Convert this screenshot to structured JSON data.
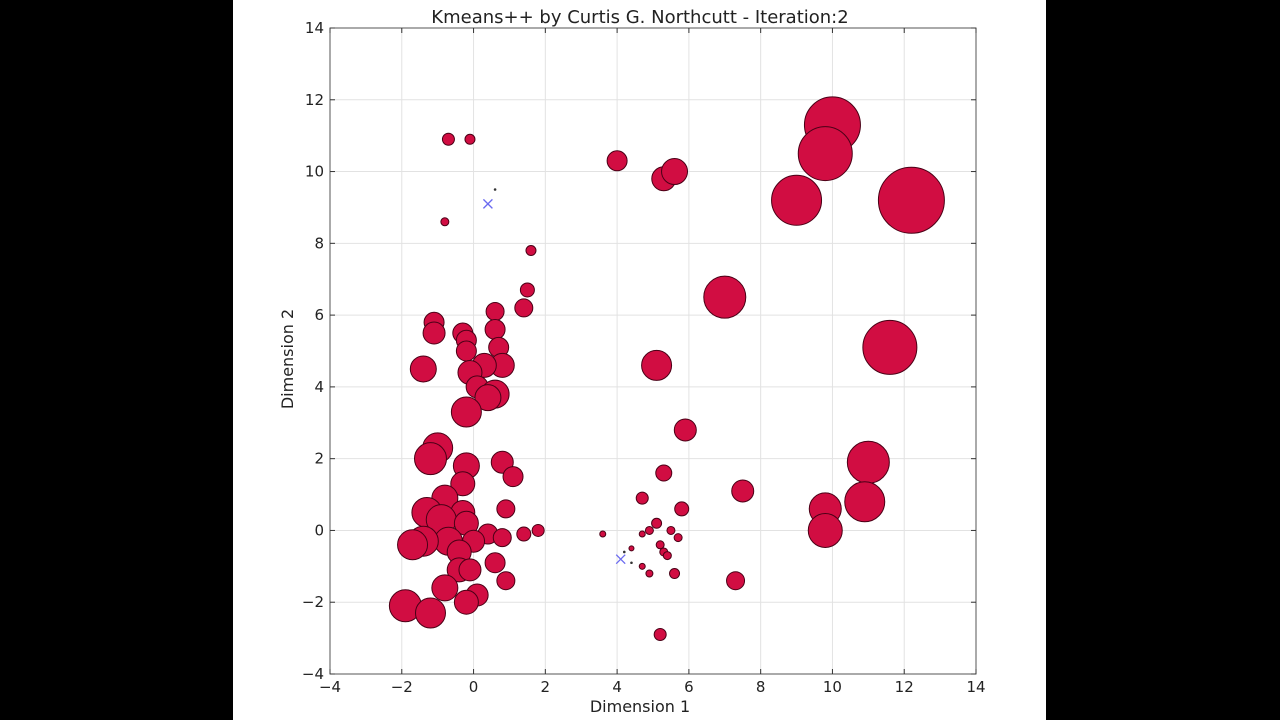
{
  "chart_data": {
    "type": "scatter",
    "title": "Kmeans++ by Curtis G. Northcutt - Iteration:2",
    "xlabel": "Dimension 1",
    "ylabel": "Dimension 2",
    "xlim": [
      -4,
      14
    ],
    "ylim": [
      -4,
      14
    ],
    "xticks": [
      -4,
      -2,
      0,
      2,
      4,
      6,
      8,
      10,
      12,
      14
    ],
    "yticks": [
      -4,
      -2,
      0,
      2,
      4,
      6,
      8,
      10,
      12,
      14
    ],
    "grid": true,
    "colors": {
      "points": "#d10d42",
      "point_edge": "#4a0016",
      "centroid": "#6a6af0",
      "grid": "#e2e2e2"
    },
    "series": [
      {
        "marker": "circle",
        "points": [
          {
            "x": -0.7,
            "y": 10.9,
            "s": 0.6
          },
          {
            "x": -0.1,
            "y": 10.9,
            "s": 0.5
          },
          {
            "x": -0.8,
            "y": 8.6,
            "s": 0.4
          },
          {
            "x": 1.6,
            "y": 7.8,
            "s": 0.5
          },
          {
            "x": 1.5,
            "y": 6.7,
            "s": 0.7
          },
          {
            "x": 1.4,
            "y": 6.2,
            "s": 0.9
          },
          {
            "x": 0.6,
            "y": 6.1,
            "s": 0.9
          },
          {
            "x": -1.1,
            "y": 5.8,
            "s": 1.0
          },
          {
            "x": -1.1,
            "y": 5.5,
            "s": 1.1
          },
          {
            "x": -0.3,
            "y": 5.5,
            "s": 1.0
          },
          {
            "x": -0.2,
            "y": 5.3,
            "s": 1.0
          },
          {
            "x": 0.6,
            "y": 5.6,
            "s": 1.0
          },
          {
            "x": 0.7,
            "y": 5.1,
            "s": 1.0
          },
          {
            "x": -0.2,
            "y": 5.0,
            "s": 1.0
          },
          {
            "x": 0.8,
            "y": 4.6,
            "s": 1.2
          },
          {
            "x": 0.3,
            "y": 4.6,
            "s": 1.2
          },
          {
            "x": -0.1,
            "y": 4.4,
            "s": 1.2
          },
          {
            "x": -1.4,
            "y": 4.5,
            "s": 1.3
          },
          {
            "x": 0.1,
            "y": 4.0,
            "s": 1.1
          },
          {
            "x": 0.6,
            "y": 3.8,
            "s": 1.4
          },
          {
            "x": 0.4,
            "y": 3.7,
            "s": 1.3
          },
          {
            "x": -0.2,
            "y": 3.3,
            "s": 1.5
          },
          {
            "x": -1.0,
            "y": 2.3,
            "s": 1.5
          },
          {
            "x": -1.2,
            "y": 2.0,
            "s": 1.6
          },
          {
            "x": -0.2,
            "y": 1.8,
            "s": 1.3
          },
          {
            "x": 0.8,
            "y": 1.9,
            "s": 1.1
          },
          {
            "x": 1.1,
            "y": 1.5,
            "s": 1.0
          },
          {
            "x": -0.3,
            "y": 1.3,
            "s": 1.2
          },
          {
            "x": -0.8,
            "y": 0.9,
            "s": 1.3
          },
          {
            "x": 0.9,
            "y": 0.6,
            "s": 0.9
          },
          {
            "x": -1.3,
            "y": 0.5,
            "s": 1.5
          },
          {
            "x": -0.3,
            "y": 0.5,
            "s": 1.2
          },
          {
            "x": -0.9,
            "y": 0.3,
            "s": 1.5
          },
          {
            "x": -0.2,
            "y": 0.2,
            "s": 1.2
          },
          {
            "x": 1.8,
            "y": 0.0,
            "s": 0.6
          },
          {
            "x": 1.4,
            "y": -0.1,
            "s": 0.7
          },
          {
            "x": 0.4,
            "y": -0.1,
            "s": 1.0
          },
          {
            "x": 0.8,
            "y": -0.2,
            "s": 0.9
          },
          {
            "x": 0.0,
            "y": -0.3,
            "s": 1.1
          },
          {
            "x": -0.7,
            "y": -0.3,
            "s": 1.4
          },
          {
            "x": -1.4,
            "y": -0.3,
            "s": 1.5
          },
          {
            "x": -1.7,
            "y": -0.4,
            "s": 1.5
          },
          {
            "x": -0.4,
            "y": -0.6,
            "s": 1.2
          },
          {
            "x": 0.6,
            "y": -0.9,
            "s": 1.0
          },
          {
            "x": -0.4,
            "y": -1.1,
            "s": 1.2
          },
          {
            "x": -0.1,
            "y": -1.1,
            "s": 1.1
          },
          {
            "x": 0.9,
            "y": -1.4,
            "s": 0.9
          },
          {
            "x": -0.8,
            "y": -1.6,
            "s": 1.3
          },
          {
            "x": 0.1,
            "y": -1.8,
            "s": 1.1
          },
          {
            "x": -0.2,
            "y": -2.0,
            "s": 1.2
          },
          {
            "x": -1.9,
            "y": -2.1,
            "s": 1.6
          },
          {
            "x": -1.2,
            "y": -2.3,
            "s": 1.5
          },
          {
            "x": 4.0,
            "y": 10.3,
            "s": 1.0
          },
          {
            "x": 5.3,
            "y": 9.8,
            "s": 1.2
          },
          {
            "x": 5.6,
            "y": 10.0,
            "s": 1.3
          },
          {
            "x": 7.0,
            "y": 6.5,
            "s": 2.1
          },
          {
            "x": 5.1,
            "y": 4.6,
            "s": 1.5
          },
          {
            "x": 5.9,
            "y": 2.8,
            "s": 1.1
          },
          {
            "x": 5.3,
            "y": 1.6,
            "s": 0.8
          },
          {
            "x": 4.7,
            "y": 0.9,
            "s": 0.6
          },
          {
            "x": 5.8,
            "y": 0.6,
            "s": 0.7
          },
          {
            "x": 5.1,
            "y": 0.2,
            "s": 0.5
          },
          {
            "x": 4.9,
            "y": 0.0,
            "s": 0.4
          },
          {
            "x": 5.5,
            "y": 0.0,
            "s": 0.4
          },
          {
            "x": 5.7,
            "y": -0.2,
            "s": 0.4
          },
          {
            "x": 3.6,
            "y": -0.1,
            "s": 0.3
          },
          {
            "x": 4.7,
            "y": -0.1,
            "s": 0.3
          },
          {
            "x": 5.2,
            "y": -0.4,
            "s": 0.4
          },
          {
            "x": 5.3,
            "y": -0.6,
            "s": 0.4
          },
          {
            "x": 5.4,
            "y": -0.7,
            "s": 0.4
          },
          {
            "x": 4.4,
            "y": -0.5,
            "s": 0.25
          },
          {
            "x": 4.7,
            "y": -1.0,
            "s": 0.3
          },
          {
            "x": 4.9,
            "y": -1.2,
            "s": 0.35
          },
          {
            "x": 5.6,
            "y": -1.2,
            "s": 0.5
          },
          {
            "x": 7.3,
            "y": -1.4,
            "s": 0.9
          },
          {
            "x": 7.5,
            "y": 1.1,
            "s": 1.1
          },
          {
            "x": 5.2,
            "y": -2.9,
            "s": 0.6
          },
          {
            "x": 10.0,
            "y": 11.3,
            "s": 2.8
          },
          {
            "x": 9.8,
            "y": 10.5,
            "s": 2.7
          },
          {
            "x": 9.0,
            "y": 9.2,
            "s": 2.5
          },
          {
            "x": 12.2,
            "y": 9.2,
            "s": 3.3
          },
          {
            "x": 11.6,
            "y": 5.1,
            "s": 2.7
          },
          {
            "x": 11.0,
            "y": 1.9,
            "s": 2.1
          },
          {
            "x": 10.9,
            "y": 0.8,
            "s": 2.0
          },
          {
            "x": 9.8,
            "y": 0.6,
            "s": 1.6
          },
          {
            "x": 9.8,
            "y": 0.0,
            "s": 1.7
          }
        ]
      },
      {
        "marker": "x",
        "points": [
          {
            "x": 0.4,
            "y": 9.1
          },
          {
            "x": 4.1,
            "y": -0.8
          }
        ]
      },
      {
        "marker": "dot",
        "points": [
          {
            "x": 0.6,
            "y": 9.5
          },
          {
            "x": 4.2,
            "y": -0.6
          },
          {
            "x": 4.4,
            "y": -0.9
          }
        ]
      }
    ]
  }
}
